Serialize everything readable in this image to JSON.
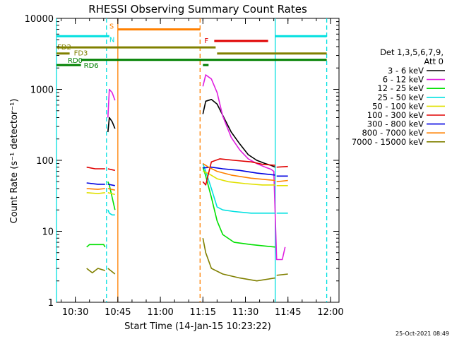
{
  "chart_data": {
    "type": "line",
    "title": "RHESSI Observing Summary Count Rates",
    "xlabel": "Start Time (14-Jan-15 10:23:22)",
    "ylabel": "Count Rate (s⁻¹ detector⁻¹)",
    "footer": "25-Oct-2021 08:49",
    "y_scale": "log",
    "xlim": [
      "10:23:22",
      "12:03:00"
    ],
    "ylim": [
      1,
      10000
    ],
    "x_ticks": [
      "10:30",
      "10:45",
      "11:00",
      "11:15",
      "11:30",
      "11:45",
      "12:00"
    ],
    "y_ticks": [
      "1",
      "10",
      "100",
      "1000",
      "10000"
    ],
    "legend": {
      "placement": "right",
      "header": [
        "Det 1,3,5,6,7,9,",
        "Att 0"
      ],
      "entries": [
        {
          "label": "3 - 6 keV",
          "color": "#000000"
        },
        {
          "label": "6 - 12 keV",
          "color": "#e020e0"
        },
        {
          "label": "12 - 25 keV",
          "color": "#00e000"
        },
        {
          "label": "25 - 50 keV",
          "color": "#00e0e0"
        },
        {
          "label": "50 - 100 keV",
          "color": "#e0e000"
        },
        {
          "label": "100 - 300 keV",
          "color": "#e00000"
        },
        {
          "label": "300 - 800 keV",
          "color": "#0000e0"
        },
        {
          "label": "800 - 7000 keV",
          "color": "#ff8000"
        },
        {
          "label": "7000 - 15000 keV",
          "color": "#808000"
        }
      ]
    },
    "flag_bars": [
      {
        "label": "S",
        "color": "#ff8000",
        "start": "10:45:00",
        "end": "11:14:00",
        "value": 7000
      },
      {
        "label": "N",
        "color": "#00e0e0",
        "start": "10:23:22",
        "end": "10:42:00",
        "value": 5600
      },
      {
        "label": "",
        "color": "#00e0e0",
        "start": "11:40:30",
        "end": "11:58:40",
        "value": 5600
      },
      {
        "label": "F",
        "color": "#e00000",
        "start": "11:19:00",
        "end": "11:38:00",
        "value": 4800
      },
      {
        "label": "FD2",
        "color": "#808000",
        "start": "10:23:22",
        "end": "11:19:30",
        "value": 3900
      },
      {
        "label": "FD3",
        "color": "#808000",
        "start": "10:23:22",
        "end": "10:28:00",
        "value": 3200
      },
      {
        "label": "",
        "color": "#808000",
        "start": "11:20:00",
        "end": "11:58:40",
        "value": 3200
      },
      {
        "label": "RD0",
        "color": "#008000",
        "start": "10:32:00",
        "end": "11:58:40",
        "value": 2600
      },
      {
        "label": "RD6",
        "color": "#008000",
        "start": "10:23:22",
        "end": "10:32:00",
        "value": 2200
      },
      {
        "label": "",
        "color": "#008000",
        "start": "11:15:00",
        "end": "11:17:00",
        "value": 2200
      }
    ],
    "vlines": [
      {
        "time": "10:23:22",
        "color": "#00e0e0",
        "dashed": false
      },
      {
        "time": "10:41:00",
        "color": "#00e0e0",
        "dashed": true
      },
      {
        "time": "10:45:00",
        "color": "#ff8000",
        "dashed": false
      },
      {
        "time": "11:14:00",
        "color": "#ff8000",
        "dashed": true
      },
      {
        "time": "11:40:30",
        "color": "#00e0e0",
        "dashed": false
      },
      {
        "time": "11:58:40",
        "color": "#00e0e0",
        "dashed": true
      }
    ],
    "series": [
      {
        "name": "3 - 6 keV",
        "color": "#000000",
        "segments": [
          [
            [
              "10:41:30",
              250
            ],
            [
              "10:42:00",
              400
            ],
            [
              "10:43:00",
              350
            ],
            [
              "10:44:00",
              280
            ]
          ],
          [
            [
              "11:15:00",
              450
            ],
            [
              "11:16:00",
              680
            ],
            [
              "11:18:00",
              720
            ],
            [
              "11:20:00",
              620
            ],
            [
              "11:22:00",
              430
            ],
            [
              "11:25:00",
              250
            ],
            [
              "11:28:00",
              170
            ],
            [
              "11:31:00",
              120
            ],
            [
              "11:34:00",
              100
            ],
            [
              "11:37:00",
              90
            ],
            [
              "11:39:00",
              85
            ],
            [
              "11:40:30",
              80
            ]
          ]
        ]
      },
      {
        "name": "6 - 12 keV",
        "color": "#e020e0",
        "segments": [
          [
            [
              "10:41:30",
              400
            ],
            [
              "10:42:00",
              1000
            ],
            [
              "10:43:00",
              900
            ],
            [
              "10:44:00",
              700
            ]
          ],
          [
            [
              "11:15:00",
              1100
            ],
            [
              "11:16:00",
              1600
            ],
            [
              "11:18:00",
              1400
            ],
            [
              "11:20:00",
              900
            ],
            [
              "11:22:00",
              420
            ],
            [
              "11:25:00",
              210
            ],
            [
              "11:28:00",
              140
            ],
            [
              "11:31:00",
              105
            ],
            [
              "11:34:00",
              90
            ],
            [
              "11:37:00",
              80
            ],
            [
              "11:39:00",
              75
            ],
            [
              "11:40:00",
              70
            ],
            [
              "11:41:00",
              4
            ],
            [
              "11:43:00",
              4
            ],
            [
              "11:44:00",
              6
            ]
          ]
        ]
      },
      {
        "name": "12 - 25 keV",
        "color": "#00e000",
        "segments": [
          [
            [
              "10:34:00",
              6
            ],
            [
              "10:35:00",
              6.5
            ],
            [
              "10:38:00",
              6.5
            ],
            [
              "10:40:00",
              6.5
            ],
            [
              "10:40:30",
              6
            ]
          ],
          [
            [
              "10:41:30",
              50
            ],
            [
              "10:42:00",
              45
            ],
            [
              "10:43:00",
              30
            ],
            [
              "10:44:00",
              20
            ]
          ],
          [
            [
              "11:15:00",
              80
            ],
            [
              "11:16:00",
              60
            ],
            [
              "11:18:00",
              30
            ],
            [
              "11:20:00",
              14
            ],
            [
              "11:22:00",
              9
            ],
            [
              "11:26:00",
              7
            ],
            [
              "11:32:00",
              6.5
            ],
            [
              "11:40:30",
              6
            ]
          ]
        ]
      },
      {
        "name": "25 - 50 keV",
        "color": "#00e0e0",
        "segments": [
          [
            [
              "10:41:30",
              20
            ],
            [
              "10:42:00",
              18
            ],
            [
              "10:43:00",
              17
            ],
            [
              "10:44:00",
              17
            ]
          ],
          [
            [
              "11:15:00",
              90
            ],
            [
              "11:16:00",
              70
            ],
            [
              "11:18:00",
              40
            ],
            [
              "11:20:00",
              22
            ],
            [
              "11:22:00",
              20
            ],
            [
              "11:26:00",
              19
            ],
            [
              "11:32:00",
              18
            ],
            [
              "11:40:30",
              18
            ]
          ],
          [
            [
              "11:41:00",
              18
            ],
            [
              "11:45:00",
              18
            ]
          ]
        ]
      },
      {
        "name": "50 - 100 keV",
        "color": "#e0e000",
        "segments": [
          [
            [
              "10:34:00",
              35
            ],
            [
              "10:38:00",
              34
            ],
            [
              "10:40:30",
              35
            ]
          ],
          [
            [
              "10:41:30",
              35
            ],
            [
              "10:44:00",
              33
            ]
          ],
          [
            [
              "11:15:00",
              70
            ],
            [
              "11:17:00",
              65
            ],
            [
              "11:20:00",
              55
            ],
            [
              "11:24:00",
              50
            ],
            [
              "11:30:00",
              47
            ],
            [
              "11:36:00",
              45
            ],
            [
              "11:40:30",
              45
            ]
          ],
          [
            [
              "11:41:00",
              44
            ],
            [
              "11:45:00",
              44
            ]
          ]
        ]
      },
      {
        "name": "100 - 300 keV",
        "color": "#e00000",
        "segments": [
          [
            [
              "10:34:00",
              80
            ],
            [
              "10:37:00",
              76
            ],
            [
              "10:40:30",
              76
            ]
          ],
          [
            [
              "10:41:30",
              76
            ],
            [
              "10:44:00",
              72
            ]
          ],
          [
            [
              "11:15:00",
              50
            ],
            [
              "11:16:00",
              45
            ],
            [
              "11:18:00",
              95
            ],
            [
              "11:21:00",
              105
            ],
            [
              "11:26:00",
              100
            ],
            [
              "11:32:00",
              95
            ],
            [
              "11:36:00",
              88
            ],
            [
              "11:40:30",
              85
            ]
          ],
          [
            [
              "11:41:00",
              80
            ],
            [
              "11:45:00",
              82
            ]
          ]
        ]
      },
      {
        "name": "300 - 800 keV",
        "color": "#0000e0",
        "segments": [
          [
            [
              "10:34:00",
              48
            ],
            [
              "10:38:00",
              46
            ],
            [
              "10:40:30",
              46
            ]
          ],
          [
            [
              "10:41:30",
              46
            ],
            [
              "10:44:00",
              44
            ]
          ],
          [
            [
              "11:15:00",
              78
            ],
            [
              "11:18:00",
              80
            ],
            [
              "11:22:00",
              76
            ],
            [
              "11:28:00",
              72
            ],
            [
              "11:34:00",
              66
            ],
            [
              "11:40:30",
              62
            ]
          ],
          [
            [
              "11:41:00",
              60
            ],
            [
              "11:45:00",
              60
            ]
          ]
        ]
      },
      {
        "name": "800 - 7000 keV",
        "color": "#ff8000",
        "segments": [
          [
            [
              "10:34:00",
              40
            ],
            [
              "10:38:00",
              39
            ],
            [
              "10:40:30",
              40
            ]
          ],
          [
            [
              "10:41:30",
              40
            ],
            [
              "10:44:00",
              38
            ]
          ],
          [
            [
              "11:15:00",
              90
            ],
            [
              "11:17:00",
              80
            ],
            [
              "11:20:00",
              70
            ],
            [
              "11:25:00",
              62
            ],
            [
              "11:32:00",
              56
            ],
            [
              "11:40:30",
              52
            ]
          ],
          [
            [
              "11:41:00",
              50
            ],
            [
              "11:45:00",
              52
            ]
          ]
        ]
      },
      {
        "name": "7000 - 15000 keV",
        "color": "#808000",
        "segments": [
          [
            [
              "10:34:00",
              3
            ],
            [
              "10:36:00",
              2.6
            ],
            [
              "10:38:00",
              3
            ],
            [
              "10:40:30",
              2.8
            ]
          ],
          [
            [
              "10:41:30",
              3
            ],
            [
              "10:44:00",
              2.5
            ]
          ],
          [
            [
              "11:15:00",
              8
            ],
            [
              "11:16:00",
              5
            ],
            [
              "11:18:00",
              3
            ],
            [
              "11:22:00",
              2.5
            ],
            [
              "11:28:00",
              2.2
            ],
            [
              "11:34:00",
              2.0
            ],
            [
              "11:40:30",
              2.2
            ]
          ],
          [
            [
              "11:41:00",
              2.4
            ],
            [
              "11:45:00",
              2.5
            ]
          ]
        ]
      }
    ]
  }
}
